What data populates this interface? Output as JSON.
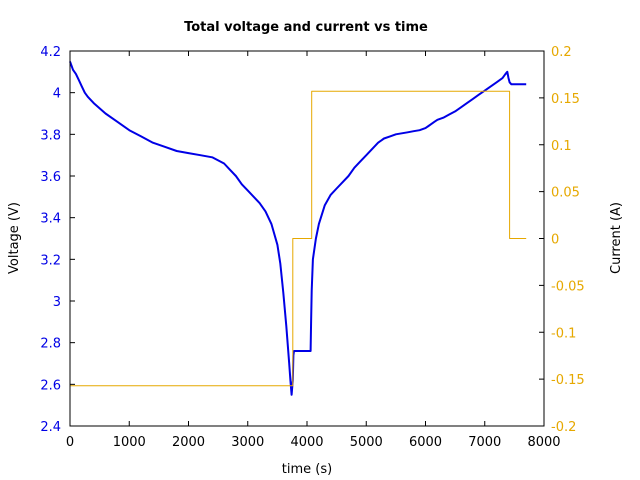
{
  "chart_data": {
    "type": "line",
    "title": "Total voltage and current vs time",
    "xlabel": "time (s)",
    "ylabel_left": "Voltage (V)",
    "ylabel_right": "Current (A)",
    "xlim": [
      0,
      8000
    ],
    "ylim_left": [
      2.4,
      4.2
    ],
    "ylim_right": [
      -0.2,
      0.2
    ],
    "x_ticks": [
      0,
      1000,
      2000,
      3000,
      4000,
      5000,
      6000,
      7000,
      8000
    ],
    "x_tick_labels": [
      "0",
      "1000",
      "2000",
      "3000",
      "4000",
      "5000",
      "6000",
      "7000",
      "8000"
    ],
    "left_ticks": [
      2.4,
      2.6,
      2.8,
      3.0,
      3.2,
      3.4,
      3.6,
      3.8,
      4.0,
      4.2
    ],
    "left_tick_labels": [
      "2.4",
      "2.6",
      "2.8",
      "3",
      "3.2",
      "3.4",
      "3.6",
      "3.8",
      "4",
      "4.2"
    ],
    "right_ticks": [
      -0.2,
      -0.15,
      -0.1,
      -0.05,
      0,
      0.05,
      0.1,
      0.15,
      0.2
    ],
    "right_tick_labels": [
      "-0.2",
      "-0.15",
      "-0.1",
      "-0.05",
      "0",
      "0.05",
      "0.1",
      "0.15",
      "0.2"
    ],
    "grid": false,
    "colors": {
      "voltage": "#0000e6",
      "current": "#e6a800",
      "axes": "#000000"
    },
    "series": [
      {
        "axis": "left",
        "x": [
          0,
          50,
          100,
          150,
          200,
          250,
          300,
          400,
          600,
          800,
          1000,
          1200,
          1400,
          1600,
          1800,
          2000,
          2200,
          2400,
          2600,
          2700,
          2800,
          2900,
          3000,
          3100,
          3200,
          3300,
          3400,
          3500,
          3550,
          3600,
          3650,
          3700,
          3720,
          3740,
          3760,
          3770,
          3780,
          3800,
          3850,
          3900,
          4000,
          4060,
          4070,
          4080,
          4100,
          4150,
          4200,
          4300,
          4400,
          4500,
          4600,
          4700,
          4800,
          4900,
          5000,
          5100,
          5200,
          5300,
          5400,
          5500,
          5600,
          5700,
          5800,
          5900,
          6000,
          6050,
          6100,
          6150,
          6200,
          6300,
          6400,
          6500,
          6600,
          6700,
          6800,
          6900,
          7000,
          7100,
          7200,
          7300,
          7350,
          7380,
          7400,
          7420,
          7450,
          7500,
          7700
        ],
        "y": [
          4.15,
          4.11,
          4.09,
          4.06,
          4.03,
          4.0,
          3.98,
          3.95,
          3.9,
          3.86,
          3.82,
          3.79,
          3.76,
          3.74,
          3.72,
          3.71,
          3.7,
          3.69,
          3.66,
          3.63,
          3.6,
          3.56,
          3.53,
          3.5,
          3.47,
          3.43,
          3.37,
          3.27,
          3.18,
          3.04,
          2.88,
          2.7,
          2.62,
          2.55,
          2.62,
          2.74,
          2.76,
          2.76,
          2.76,
          2.76,
          2.76,
          2.76,
          2.9,
          3.05,
          3.2,
          3.3,
          3.37,
          3.46,
          3.51,
          3.54,
          3.57,
          3.6,
          3.64,
          3.67,
          3.7,
          3.73,
          3.76,
          3.78,
          3.79,
          3.8,
          3.805,
          3.81,
          3.815,
          3.82,
          3.83,
          3.84,
          3.85,
          3.86,
          3.87,
          3.88,
          3.895,
          3.91,
          3.93,
          3.95,
          3.97,
          3.99,
          4.01,
          4.03,
          4.05,
          4.07,
          4.09,
          4.1,
          4.07,
          4.05,
          4.04,
          4.04,
          4.04
        ]
      },
      {
        "axis": "right",
        "x": [
          0,
          3760,
          3760,
          4080,
          4080,
          7420,
          7420,
          7700
        ],
        "y": [
          -0.157,
          -0.157,
          0,
          0,
          0.157,
          0.157,
          0,
          0
        ]
      }
    ]
  }
}
